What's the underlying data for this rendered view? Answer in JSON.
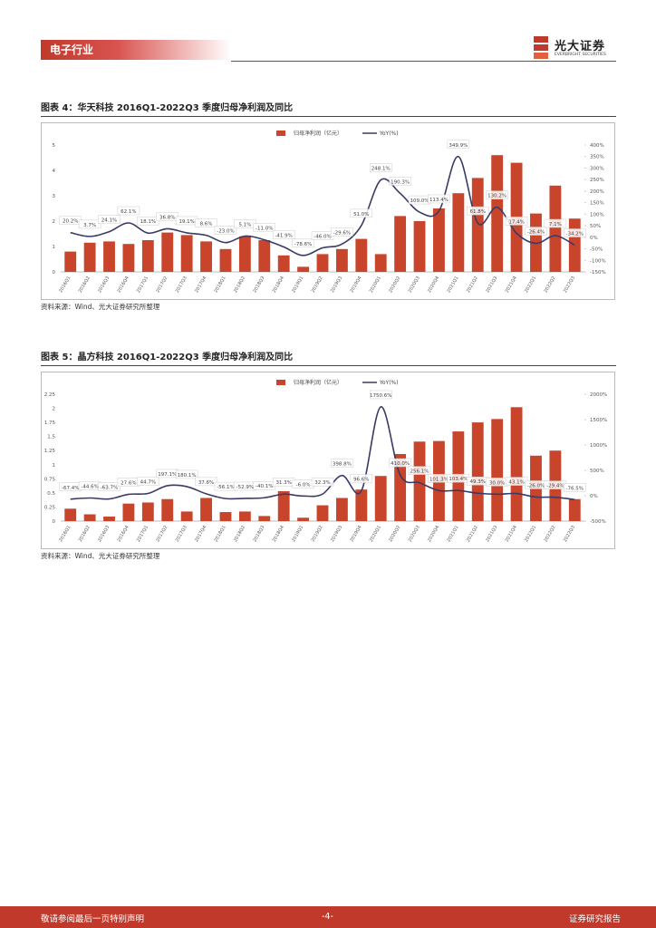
{
  "header": {
    "section": "电子行业",
    "logo": "光大证券",
    "logo_en": "EVERBRIGHT SECURITIES"
  },
  "figures": [
    {
      "caption": "图表 4：华天科技 2016Q1-2022Q3 季度归母净利润及同比",
      "source": "资料来源：Wind、光大证券研究所整理",
      "chart_data": {
        "type": "combo",
        "categories": [
          "2016Q1",
          "2016Q2",
          "2016Q3",
          "2016Q4",
          "2017Q1",
          "2017Q2",
          "2017Q3",
          "2017Q4",
          "2018Q1",
          "2018Q2",
          "2018Q3",
          "2018Q4",
          "2019Q1",
          "2019Q2",
          "2019Q3",
          "2019Q4",
          "2020Q1",
          "2020Q2",
          "2020Q3",
          "2020Q4",
          "2021Q1",
          "2021Q2",
          "2021Q3",
          "2021Q4",
          "2022Q1",
          "2022Q2",
          "2022Q3"
        ],
        "series": [
          {
            "name": "归母净利润（亿元）",
            "color": "#c8442b",
            "values": [
              0.8,
              1.15,
              1.2,
              1.1,
              1.25,
              1.55,
              1.45,
              1.2,
              0.9,
              1.4,
              1.25,
              0.65,
              0.2,
              0.7,
              0.9,
              1.3,
              0.7,
              2.2,
              2.0,
              2.5,
              3.1,
              3.7,
              4.6,
              4.3,
              2.3,
              3.4,
              2.1
            ]
          },
          {
            "name": "YoY(%)",
            "color": "#3a3a66",
            "axis": "y2",
            "values": [
              20.2,
              3.7,
              24.1,
              62.1,
              18.1,
              36.8,
              19.1,
              8.6,
              -23.0,
              5.1,
              -11.0,
              -41.9,
              -78.6,
              -46.0,
              -29.6,
              51.0,
              248.1,
              190.3,
              109.0,
              113.4,
              349.9,
              61.8,
              130.2,
              17.4,
              -26.4,
              7.1,
              -34.2
            ],
            "value_labels": [
              "20.2%",
              "3.7%",
              "24.1%",
              "62.1%",
              "18.1%",
              "36.8%",
              "19.1%",
              "8.6%",
              "-23.0%",
              "5.1%",
              "-11.0%",
              "-41.9%",
              "-78.6%",
              "-46.0%",
              "-29.6%",
              "51.0%",
              "248.1%",
              "190.3%",
              "109.0%",
              "113.4%",
              "349.9%",
              "61.8%",
              "130.2%",
              "17.4%",
              "-26.4%",
              "7.1%",
              "-34.2%"
            ]
          }
        ],
        "ylim": [
          0,
          5
        ],
        "yticks": [
          0,
          1,
          2,
          3,
          4,
          5
        ],
        "y2lim": [
          -150,
          400
        ],
        "y2ticks": [
          {
            "value": -150,
            "label": "-150%"
          },
          {
            "value": -100,
            "label": "-100%"
          },
          {
            "value": -50,
            "label": "-50%"
          },
          {
            "value": 0,
            "label": "0%"
          },
          {
            "value": 50,
            "label": "50%"
          },
          {
            "value": 100,
            "label": "100%"
          },
          {
            "value": 150,
            "label": "150%"
          },
          {
            "value": 200,
            "label": "200%"
          },
          {
            "value": 250,
            "label": "250%"
          },
          {
            "value": 300,
            "label": "300%"
          },
          {
            "value": 350,
            "label": "350%"
          },
          {
            "value": 400,
            "label": "400%"
          }
        ],
        "legend": "top"
      }
    },
    {
      "caption": "图表 5：晶方科技 2016Q1-2022Q3 季度归母净利润及同比",
      "source": "资料来源：Wind、光大证券研究所整理",
      "chart_data": {
        "type": "combo",
        "categories": [
          "2016Q1",
          "2016Q2",
          "2016Q3",
          "2016Q4",
          "2017Q1",
          "2017Q2",
          "2017Q3",
          "2017Q4",
          "2018Q1",
          "2018Q2",
          "2018Q3",
          "2018Q4",
          "2019Q1",
          "2019Q2",
          "2019Q3",
          "2019Q4",
          "2020Q1",
          "2020Q2",
          "2020Q3",
          "2020Q4",
          "2021Q1",
          "2021Q2",
          "2021Q3",
          "2021Q4",
          "2022Q1",
          "2022Q2",
          "2022Q3"
        ],
        "series": [
          {
            "name": "归母净利润（亿元）",
            "color": "#c8442b",
            "values": [
              0.22,
              0.12,
              0.08,
              0.31,
              0.33,
              0.39,
              0.17,
              0.41,
              0.16,
              0.17,
              0.09,
              0.53,
              0.06,
              0.28,
              0.41,
              0.56,
              0.8,
              1.19,
              1.41,
              1.42,
              1.59,
              1.75,
              1.81,
              2.02,
              1.16,
              1.25,
              0.39
            ]
          },
          {
            "name": "YoY(%)",
            "color": "#3a3a66",
            "axis": "y2",
            "values": [
              -67.4,
              -44.6,
              -63.7,
              27.6,
              44.7,
              197.1,
              180.1,
              37.6,
              -56.1,
              -52.9,
              -40.1,
              31.3,
              -6.0,
              32.3,
              398.8,
              96.6,
              1750.6,
              410.0,
              256.1,
              101.3,
              103.4,
              49.3,
              30.0,
              43.1,
              -26.0,
              -29.4,
              -76.5
            ],
            "value_labels": [
              "-67.4%",
              "-44.6%",
              "-63.7%",
              "27.6%",
              "44.7%",
              "197.1%",
              "180.1%",
              "37.6%",
              "-56.1%",
              "-52.9%",
              "-40.1%",
              "31.3%",
              "-6.0%",
              "32.3%",
              "398.8%",
              "96.6%",
              "1750.6%",
              "410.0%",
              "256.1%",
              "101.3%",
              "103.4%",
              "49.3%",
              "30.0%",
              "43.1%",
              "-26.0%",
              "-29.4%",
              "-76.5%"
            ]
          }
        ],
        "ylim": [
          0,
          2.25
        ],
        "yticks": [
          0,
          0.25,
          0.5,
          0.75,
          1,
          1.25,
          1.5,
          1.75,
          2,
          2.25
        ],
        "y2lim": [
          -500,
          2000
        ],
        "y2ticks": [
          {
            "value": -500,
            "label": "-500%"
          },
          {
            "value": 0,
            "label": "0%"
          },
          {
            "value": 500,
            "label": "500%"
          },
          {
            "value": 1000,
            "label": "1000%"
          },
          {
            "value": 1500,
            "label": "1500%"
          },
          {
            "value": 2000,
            "label": "2000%"
          }
        ],
        "legend": "top"
      }
    }
  ],
  "footer": {
    "disclaimer": "敬请参阅最后一页特别声明",
    "page": "-4-",
    "report_type": "证券研究报告"
  }
}
